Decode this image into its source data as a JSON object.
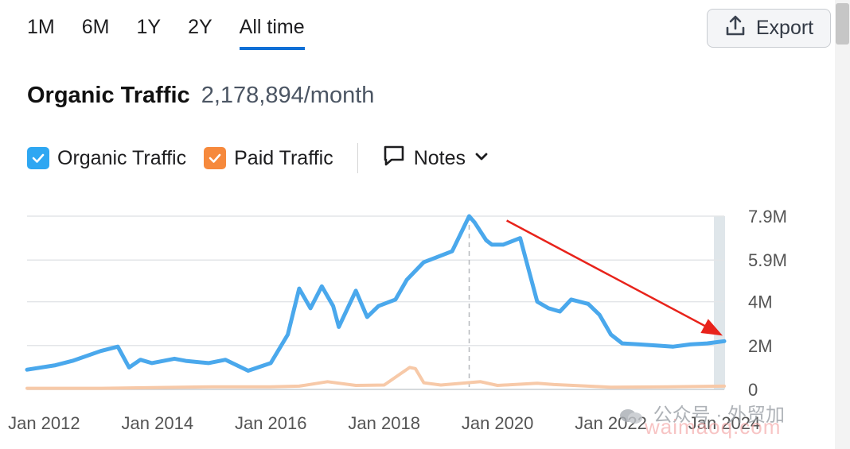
{
  "tabs": [
    {
      "label": "1M",
      "active": false
    },
    {
      "label": "6M",
      "active": false
    },
    {
      "label": "1Y",
      "active": false
    },
    {
      "label": "2Y",
      "active": false
    },
    {
      "label": "All time",
      "active": true
    }
  ],
  "export": {
    "label": "Export",
    "icon": "upload-icon"
  },
  "headline": {
    "title": "Organic Traffic",
    "value": "2,178,894/month"
  },
  "legend": {
    "organic": {
      "label": "Organic Traffic",
      "checked": true,
      "color": "#2ea7f2"
    },
    "paid": {
      "label": "Paid Traffic",
      "checked": true,
      "color": "#f6893c"
    },
    "notes": {
      "label": "Notes",
      "icon": "comment-icon",
      "chevron": "chevron-down-icon"
    }
  },
  "watermark": {
    "text": "公众号 · 外贸加",
    "url": "waimaoq.com"
  },
  "chart_data": {
    "type": "line",
    "x_ticks": [
      "Jan 2012",
      "Jan 2014",
      "Jan 2016",
      "Jan 2018",
      "Jan 2020",
      "Jan 2022",
      "Jan 2024"
    ],
    "y_ticks": [
      "0",
      "2M",
      "4M",
      "5.9M",
      "7.9M"
    ],
    "ylim": [
      0,
      7.9
    ],
    "y_unit": "M",
    "grid": true,
    "marker_line_x": 2019.5,
    "arrow_annotation": {
      "from": [
        2019.6,
        7.7
      ],
      "to": [
        2024.0,
        2.45
      ],
      "color": "#e8231b"
    },
    "series": [
      {
        "name": "Organic Traffic",
        "color": "#4aa8ec",
        "x": [
          2011.7,
          2012.2,
          2012.5,
          2013.0,
          2013.3,
          2013.5,
          2013.7,
          2013.9,
          2014.3,
          2014.5,
          2014.9,
          2015.2,
          2015.6,
          2016.0,
          2016.3,
          2016.5,
          2016.7,
          2016.9,
          2017.1,
          2017.2,
          2017.5,
          2017.7,
          2017.9,
          2018.2,
          2018.4,
          2018.7,
          2018.9,
          2019.2,
          2019.5,
          2019.6,
          2019.8,
          2019.9,
          2020.1,
          2020.4,
          2020.7,
          2020.9,
          2021.1,
          2021.3,
          2021.6,
          2021.8,
          2022.0,
          2022.2,
          2022.5,
          2022.8,
          2023.1,
          2023.4,
          2023.7,
          2024.0
        ],
        "values": [
          0.9,
          1.1,
          1.3,
          1.75,
          1.95,
          1.0,
          1.35,
          1.2,
          1.4,
          1.3,
          1.2,
          1.35,
          0.85,
          1.2,
          2.5,
          4.6,
          3.7,
          4.7,
          3.8,
          2.85,
          4.5,
          3.3,
          3.8,
          4.1,
          5.0,
          5.8,
          6.0,
          6.3,
          7.9,
          7.6,
          6.8,
          6.6,
          6.6,
          6.9,
          4.0,
          3.7,
          3.55,
          4.1,
          3.9,
          3.4,
          2.5,
          2.1,
          2.05,
          2.0,
          1.95,
          2.05,
          2.1,
          2.2
        ]
      },
      {
        "name": "Paid Traffic",
        "color": "#f7c9a8",
        "x": [
          2011.7,
          2013.0,
          2015.0,
          2016.0,
          2016.5,
          2017.0,
          2017.5,
          2018.0,
          2018.45,
          2018.55,
          2018.7,
          2019.0,
          2019.7,
          2020.0,
          2020.7,
          2021.0,
          2022.0,
          2023.0,
          2024.0
        ],
        "values": [
          0.05,
          0.05,
          0.12,
          0.12,
          0.15,
          0.35,
          0.18,
          0.2,
          1.0,
          0.95,
          0.3,
          0.2,
          0.35,
          0.18,
          0.28,
          0.22,
          0.1,
          0.12,
          0.15
        ]
      }
    ]
  }
}
